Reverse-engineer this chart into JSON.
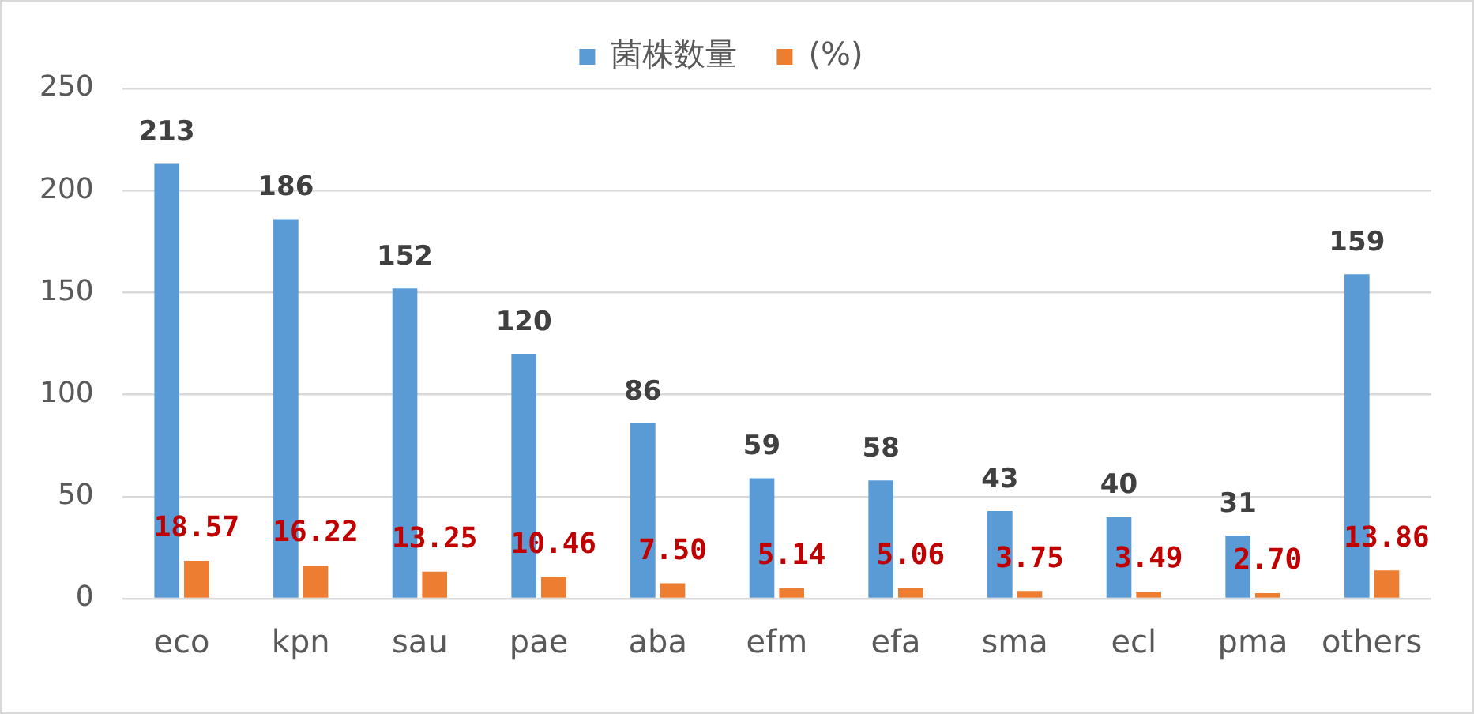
{
  "chart_data": {
    "type": "bar",
    "legend": "top",
    "grid": "y",
    "categories": [
      "eco",
      "kpn",
      "sau",
      "pae",
      "aba",
      "efm",
      "efa",
      "sma",
      "ecl",
      "pma",
      "others"
    ],
    "ylim": [
      0,
      250
    ],
    "yticks": [
      0,
      50,
      100,
      150,
      200,
      250
    ],
    "series": [
      {
        "name": "菌株数量",
        "color": "#5b9bd5",
        "values": [
          213,
          186,
          152,
          120,
          86,
          59,
          58,
          43,
          40,
          31,
          159
        ],
        "value_labels": [
          "213",
          "186",
          "152",
          "120",
          "86",
          "59",
          "58",
          "43",
          "40",
          "31",
          "159"
        ]
      },
      {
        "name": "(%)",
        "color": "#ed7d31",
        "values": [
          18.57,
          16.22,
          13.25,
          10.46,
          7.5,
          5.14,
          5.06,
          3.75,
          3.49,
          2.7,
          13.86
        ],
        "value_labels": [
          "18.57",
          "16.22",
          "13.25",
          "10.46",
          "7.50",
          "5.14",
          "5.06",
          "3.75",
          "3.49",
          "2.70",
          "13.86"
        ]
      }
    ]
  }
}
